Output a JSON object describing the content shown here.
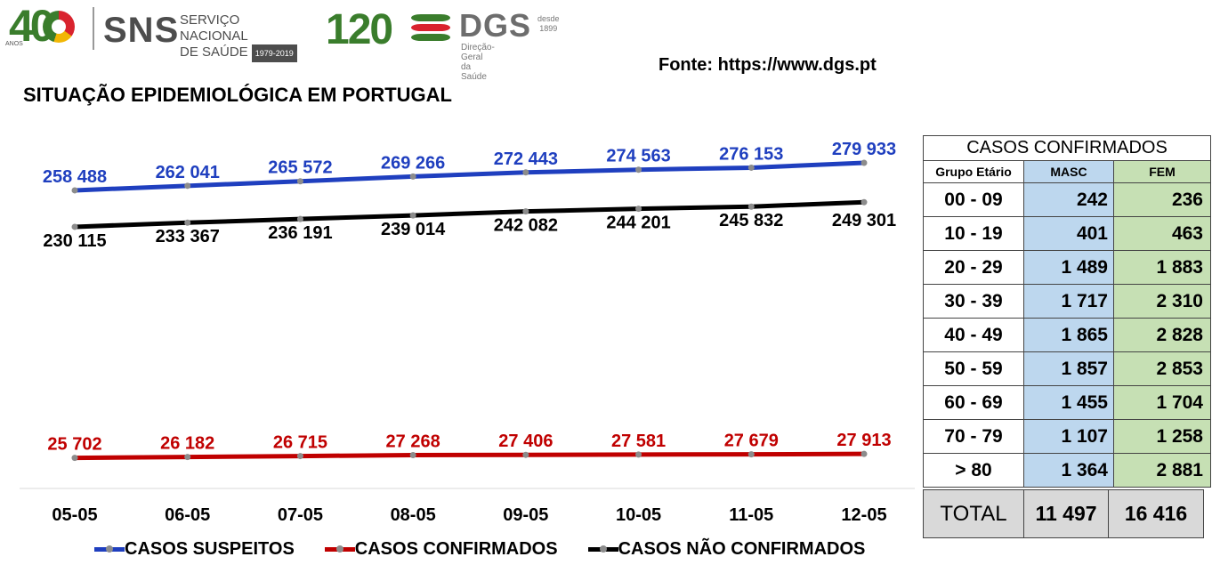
{
  "logos": {
    "forty": "40",
    "forty_small": "ANOS",
    "sns": "SNS",
    "sns_line1": "SERVIÇO NACIONAL",
    "sns_line2": "DE SAÚDE",
    "sns_years": "1979-2019",
    "years120": "120",
    "dgs": "DGS",
    "dgs_desde": "desde",
    "dgs_year": "1899",
    "dgs_sub": "Direção-Geral da Saúde"
  },
  "source": "Fonte: https://www.dgs.pt",
  "title": "SITUAÇÃO EPIDEMIOLÓGICA EM PORTUGAL",
  "colors": {
    "suspeitos": "#1f3fbf",
    "confirmados": "#c00000",
    "nao_confirmados": "#000000",
    "masc_bg": "#bdd7ee",
    "fem_bg": "#c6e0b4"
  },
  "chart_data": {
    "type": "line",
    "categories": [
      "05-05",
      "06-05",
      "07-05",
      "08-05",
      "09-05",
      "10-05",
      "11-05",
      "12-05"
    ],
    "series": [
      {
        "name": "CASOS SUSPEITOS",
        "values": [
          258488,
          262041,
          265572,
          269266,
          272443,
          274563,
          276153,
          279933
        ],
        "labels": [
          "258 488",
          "262 041",
          "265 572",
          "269 266",
          "272 443",
          "274 563",
          "276 153",
          "279 933"
        ]
      },
      {
        "name": "CASOS CONFIRMADOS",
        "values": [
          25702,
          26182,
          26715,
          27268,
          27406,
          27581,
          27679,
          27913
        ],
        "labels": [
          "25 702",
          "26 182",
          "26 715",
          "27 268",
          "27 406",
          "27 581",
          "27 679",
          "27 913"
        ]
      },
      {
        "name": "CASOS NÃO CONFIRMADOS",
        "values": [
          230115,
          233367,
          236191,
          239014,
          242082,
          244201,
          245832,
          249301
        ],
        "labels": [
          "230 115",
          "233 367",
          "236 191",
          "239 014",
          "242 082",
          "244 201",
          "245 832",
          "249 301"
        ]
      }
    ],
    "legend": "bottom",
    "grid": false
  },
  "table": {
    "title": "CASOS CONFIRMADOS",
    "headers": [
      "Grupo Etário",
      "MASC",
      "FEM"
    ],
    "rows": [
      {
        "age": "00 - 09",
        "masc": "242",
        "fem": "236"
      },
      {
        "age": "10 - 19",
        "masc": "401",
        "fem": "463"
      },
      {
        "age": "20 - 29",
        "masc": "1 489",
        "fem": "1 883"
      },
      {
        "age": "30 - 39",
        "masc": "1 717",
        "fem": "2 310"
      },
      {
        "age": "40 - 49",
        "masc": "1 865",
        "fem": "2 828"
      },
      {
        "age": "50 - 59",
        "masc": "1 857",
        "fem": "2 853"
      },
      {
        "age": "60 - 69",
        "masc": "1 455",
        "fem": "1 704"
      },
      {
        "age": "70 - 79",
        "masc": "1 107",
        "fem": "1 258"
      },
      {
        "age": "> 80",
        "masc": "1 364",
        "fem": "2 881"
      }
    ],
    "total": {
      "label": "TOTAL",
      "masc": "11 497",
      "fem": "16 416"
    }
  }
}
